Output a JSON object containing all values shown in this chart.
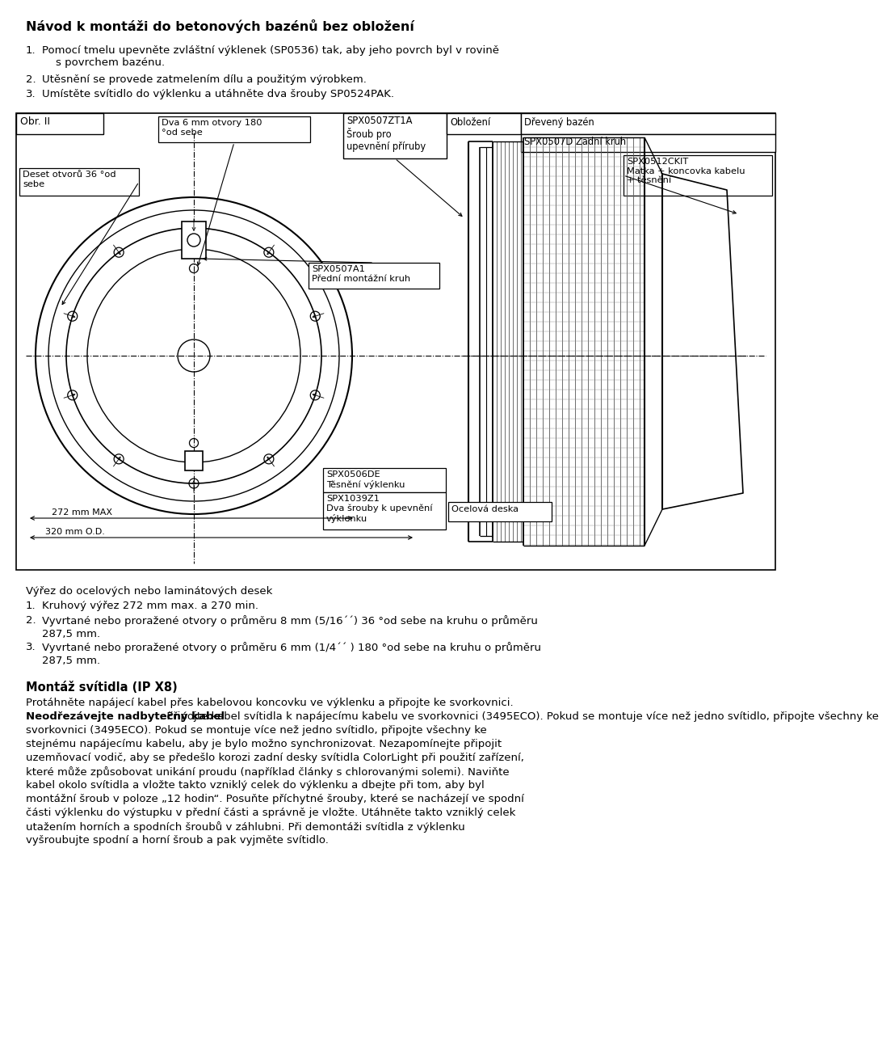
{
  "title": "Návod k montáži do betonových bazénů bez obložení",
  "intro": [
    "Pomocí tmelu upevněte zvláštní výklenek (SP0536) tak, aby jeho povrch byl v rovině\n    s povrchem bazénu.",
    "Utěsnění se provede zatmelením dílu a použitým výrobkem.",
    "Umístěte svítidlo do výklenku a utáhněte dva šrouby SP0524PAK."
  ],
  "fig_label": "Obr. II",
  "hdr_spx": "SPX0507ZT1A\nŠroub pro\nupevnění příruby",
  "hdr_oblozeni": "Obložení",
  "hdr_dreveny": "Dřevený bazén",
  "lbl_spx0507d": "SPX0507D Zadní kruh",
  "lbl_dva6mm": "Dva 6 mm otvory 180\n°od sebe",
  "lbl_deset": "Deset otvorů 36 °od\nsebe",
  "lbl_spx0512": "SPX0512CKIT\nMatka + koncovka kabelu\n+ těsnění",
  "lbl_spx0507a1": "SPX0507A1\nPřední montážní kruh",
  "lbl_spx0506de": "SPX0506DE\nTěsnění výklenku",
  "lbl_spx1039z1": "SPX1039Z1\nDva šrouby k upevnění\nvýklenku",
  "lbl_ocelova": "Ocelová deska",
  "lbl_272": "272 mm MAX",
  "lbl_320": "320 mm O.D.",
  "sec2_title": "Výřez do ocelových nebo laminátových desek",
  "sec2": [
    "Kruhový výřez 272 mm max. a 270 min.",
    "Vyvrtané nebo proražené otvory o průměru 8 mm (5/16´´) 36 °od sebe na kruhu o průměru 287,5 mm.",
    "Vyvrtané nebo proražené otvory o průměru 6 mm (1/4´´ ) 180 °od sebe na kruhu o průměru 287,5 mm."
  ],
  "sec3_title": "Montáž svítidla (IP X8)",
  "sec3_line1": "Protáhněte napájecí kabel přes kabelovou koncovku ve výklenku a připojte ke svorkovnici.",
  "sec3_bold": "Neodřezávejte nadbytečný kabel",
  "sec3_after_bold": ". Připojte kabel svítidla k napájecímu kabelu ve svorkovnici (3495ECO). Pokud se montuje více než jedno svítidlo, připojte všechny ke",
  "sec3_rest": [
    "stejnému napájecímu kabelu, aby je bylo možno synchronizovat. Nezapomínejte připojit",
    "uzemňovací vodič, aby se předešlo korozi zadní desky svítidla ColorLight při použití zařízení,",
    "které může způsobovat unikání proudu (například články s chlorovanými solemi). Naviňte",
    "kabel okolo svítidla a vložte takto vzniklý celek do výklenku a dbejte při tom, aby byl",
    "montážní šroub v poloze „12 hodin“. Posuňte příchytné šrouby, které se nacházejí ve spodní",
    "části výklenku do výstupku v přední části a správně je vložte. Utáhněte takto vzniklý celek",
    "utažením horních a spodních šroubů v záhlubni. Při demontáži svítidla z výklenku",
    "vyšroubujte spodní a horní šroub a pak vyjměte svítidlo."
  ]
}
